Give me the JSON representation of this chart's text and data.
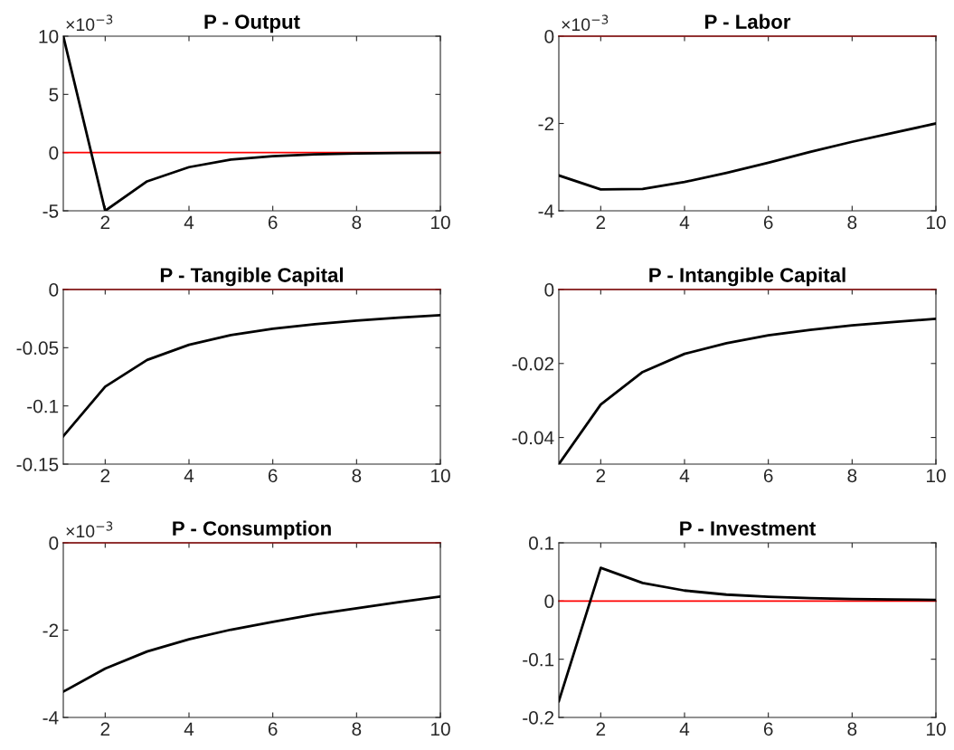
{
  "chart_data": [
    {
      "type": "line",
      "title": "P - Output",
      "x": [
        1,
        2,
        3,
        4,
        5,
        6,
        7,
        8,
        9,
        10
      ],
      "xlim": [
        1,
        10
      ],
      "xticks": [
        2,
        4,
        6,
        8,
        10
      ],
      "ylim": [
        -5,
        10
      ],
      "yticks": [
        -5,
        0,
        5,
        10
      ],
      "annotations": [
        "×10$^{−3}$"
      ],
      "series": [
        {
          "color": "#000000",
          "values": [
            10,
            -5,
            -2.47,
            -1.25,
            -0.6,
            -0.3,
            -0.15,
            -0.08,
            -0.04,
            -0.02
          ]
        }
      ],
      "ref_lines": [
        {
          "axis": "y",
          "value": 0,
          "color": "#ff0000"
        }
      ]
    },
    {
      "type": "line",
      "title": "P - Labor",
      "x": [
        1,
        2,
        3,
        4,
        5,
        6,
        7,
        8,
        9,
        10
      ],
      "xlim": [
        1,
        10
      ],
      "xticks": [
        2,
        4,
        6,
        8,
        10
      ],
      "ylim": [
        -4,
        0
      ],
      "yticks": [
        -4,
        -2,
        0
      ],
      "annotations": [
        "×10$^{−3}$"
      ],
      "series": [
        {
          "color": "#000000",
          "values": [
            -3.19,
            -3.51,
            -3.5,
            -3.34,
            -3.13,
            -2.9,
            -2.65,
            -2.42,
            -2.21,
            -2.0
          ]
        }
      ],
      "ref_lines": [
        {
          "axis": "y",
          "value": 0,
          "color": "#ff0000"
        }
      ]
    },
    {
      "type": "line",
      "title": "P - Tangible Capital",
      "x": [
        1,
        2,
        3,
        4,
        5,
        6,
        7,
        8,
        9,
        10
      ],
      "xlim": [
        1,
        10
      ],
      "xticks": [
        2,
        4,
        6,
        8,
        10
      ],
      "ylim": [
        -0.15,
        0
      ],
      "yticks": [
        -0.15,
        -0.1,
        -0.05,
        0
      ],
      "series": [
        {
          "color": "#000000",
          "values": [
            -0.126,
            -0.0834,
            -0.0605,
            -0.0475,
            -0.0392,
            -0.0338,
            -0.0299,
            -0.0268,
            -0.0242,
            -0.022
          ]
        }
      ],
      "ref_lines": [
        {
          "axis": "y",
          "value": 0,
          "color": "#ff0000"
        }
      ]
    },
    {
      "type": "line",
      "title": "P - Intangible Capital",
      "x": [
        1,
        2,
        3,
        4,
        5,
        6,
        7,
        8,
        9,
        10
      ],
      "xlim": [
        1,
        10
      ],
      "xticks": [
        2,
        4,
        6,
        8,
        10
      ],
      "ylim": [
        -0.0472,
        0
      ],
      "yticks": [
        -0.04,
        -0.02,
        0
      ],
      "series": [
        {
          "color": "#000000",
          "values": [
            -0.0472,
            -0.0311,
            -0.0223,
            -0.0174,
            -0.0145,
            -0.0124,
            -0.0109,
            -0.0097,
            -0.0088,
            -0.0079
          ]
        }
      ],
      "ref_lines": [
        {
          "axis": "y",
          "value": 0,
          "color": "#ff0000"
        }
      ]
    },
    {
      "type": "line",
      "title": "P - Consumption",
      "x": [
        1,
        2,
        3,
        4,
        5,
        6,
        7,
        8,
        9,
        10
      ],
      "xlim": [
        1,
        10
      ],
      "xticks": [
        2,
        4,
        6,
        8,
        10
      ],
      "ylim": [
        -4,
        0
      ],
      "yticks": [
        -4,
        -2,
        0
      ],
      "annotations": [
        "×10$^{−3}$"
      ],
      "series": [
        {
          "color": "#000000",
          "values": [
            -3.41,
            -2.88,
            -2.49,
            -2.21,
            -1.99,
            -1.81,
            -1.64,
            -1.5,
            -1.36,
            -1.23
          ]
        }
      ],
      "ref_lines": [
        {
          "axis": "y",
          "value": 0,
          "color": "#ff0000"
        }
      ]
    },
    {
      "type": "line",
      "title": "P - Investment",
      "x": [
        1,
        2,
        3,
        4,
        5,
        6,
        7,
        8,
        9,
        10
      ],
      "xlim": [
        1,
        10
      ],
      "xticks": [
        2,
        4,
        6,
        8,
        10
      ],
      "ylim": [
        -0.2,
        0.1
      ],
      "yticks": [
        -0.2,
        -0.1,
        0,
        0.1
      ],
      "series": [
        {
          "color": "#000000",
          "values": [
            -0.172,
            0.057,
            0.031,
            0.018,
            0.011,
            0.0073,
            0.005,
            0.0036,
            0.0026,
            0.002
          ]
        }
      ],
      "ref_lines": [
        {
          "axis": "y",
          "value": 0,
          "color": "#ff0000"
        }
      ]
    }
  ]
}
